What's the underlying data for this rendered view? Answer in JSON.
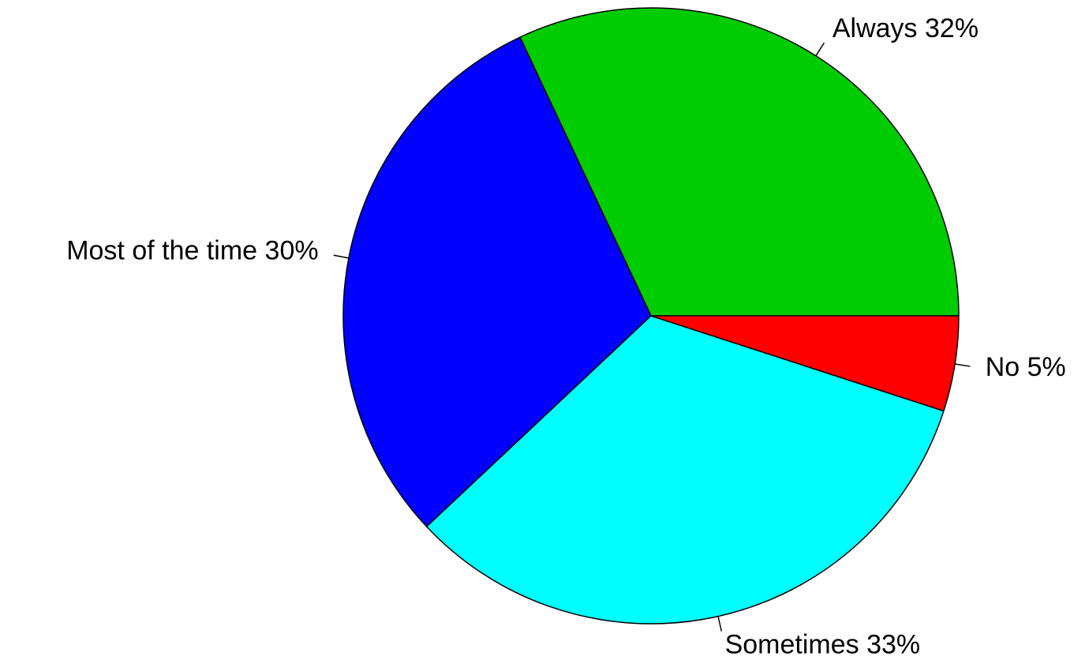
{
  "chart_data": {
    "type": "pie",
    "categories": [
      "Always",
      "Most of the time",
      "Sometimes",
      "No"
    ],
    "values": [
      32,
      30,
      33,
      5
    ],
    "value_labels": [
      "32%",
      "30%",
      "33%",
      "5%"
    ],
    "colors": [
      "#00cc00",
      "#0000ff",
      "#00ffff",
      "#ff0000"
    ]
  }
}
